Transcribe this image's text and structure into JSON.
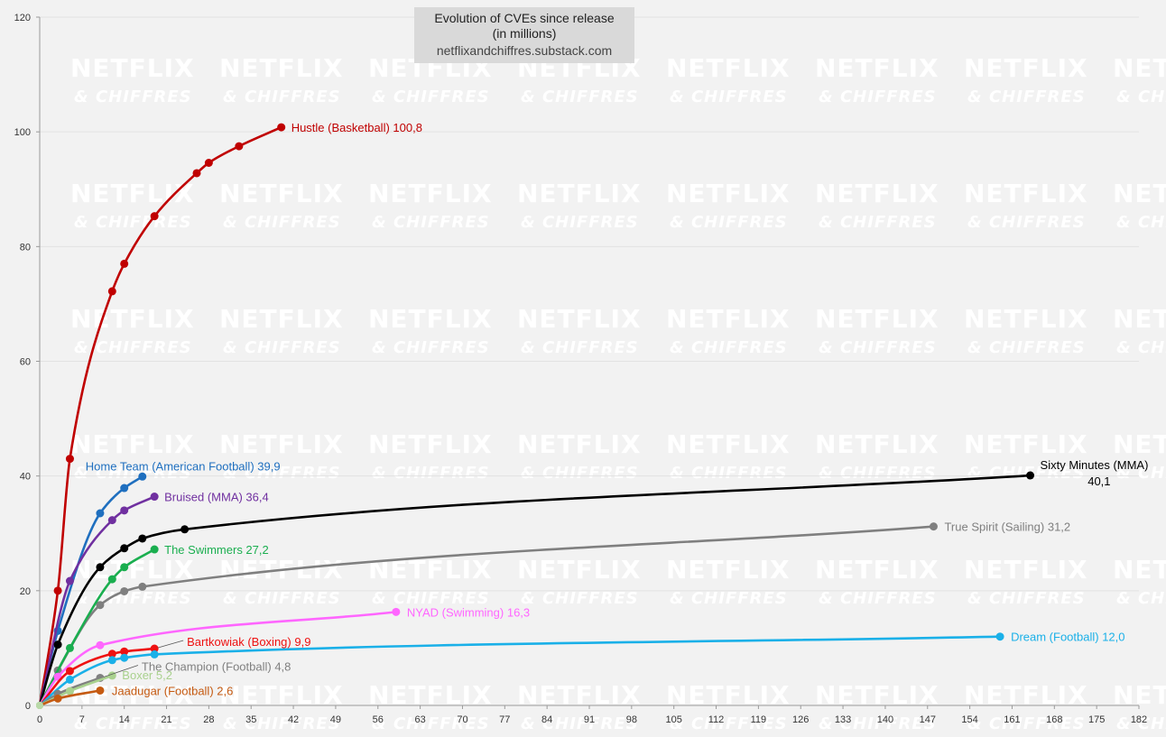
{
  "title_line1": "Evolution of CVEs since release",
  "title_line2": "(in millions)",
  "source": "netflixandchiffres.substack.com",
  "watermark": {
    "line1": "NETFLIX",
    "line2": "& CHIFFRES"
  },
  "chart_data": {
    "type": "line",
    "title": "Evolution of CVEs since release (in millions)",
    "xlim": [
      0,
      182
    ],
    "ylim": [
      0,
      120
    ],
    "xticks": [
      0,
      7,
      14,
      21,
      28,
      35,
      42,
      49,
      56,
      63,
      70,
      77,
      84,
      91,
      98,
      105,
      112,
      119,
      126,
      133,
      140,
      147,
      154,
      161,
      168,
      175,
      182
    ],
    "yticks": [
      0,
      20,
      40,
      60,
      80,
      100,
      120
    ],
    "grid": true,
    "series": [
      {
        "name": "Hustle (Basketball)",
        "end_label": "100,8",
        "color": "#c00000",
        "x": [
          0,
          3,
          5,
          12,
          14,
          19,
          26,
          28,
          33,
          40
        ],
        "y": [
          0,
          20,
          43,
          72.2,
          77,
          85.3,
          92.8,
          94.6,
          97.5,
          100.8
        ]
      },
      {
        "name": "Home Team (American Football)",
        "end_label": "39,9",
        "color": "#1f6fbf",
        "x": [
          0,
          3,
          10,
          14,
          17
        ],
        "y": [
          0,
          13,
          33.5,
          37.9,
          39.9
        ]
      },
      {
        "name": "Bruised (MMA)",
        "end_label": "36,4",
        "color": "#7030a0",
        "x": [
          0,
          5,
          12,
          14,
          19
        ],
        "y": [
          0,
          21.7,
          32.3,
          34,
          36.4
        ]
      },
      {
        "name": "Sixty Minutes (MMA)",
        "end_label": "40,1",
        "color": "#000000",
        "x": [
          0,
          3,
          10,
          14,
          17,
          24,
          164
        ],
        "y": [
          0,
          10.6,
          24.1,
          27.4,
          29.1,
          30.7,
          40.1
        ]
      },
      {
        "name": "True Spirit (Sailing)",
        "end_label": "31,2",
        "color": "#7f7f7f",
        "x": [
          0,
          3,
          10,
          14,
          17,
          148
        ],
        "y": [
          0,
          6.1,
          17.5,
          19.9,
          20.7,
          31.2
        ]
      },
      {
        "name": "The Swimmers",
        "end_label": "27,2",
        "color": "#1aae4f",
        "x": [
          0,
          5,
          12,
          14,
          19
        ],
        "y": [
          0,
          10,
          22,
          24.1,
          27.2
        ]
      },
      {
        "name": "NYAD (Swimming)",
        "end_label": "16,3",
        "color": "#ff66ff",
        "x": [
          0,
          3,
          10,
          59
        ],
        "y": [
          0,
          5,
          10.5,
          16.3
        ]
      },
      {
        "name": "Bartkowiak (Boxing)",
        "end_label": "9,9",
        "color": "#ee1111",
        "x": [
          0,
          5,
          12,
          14,
          19
        ],
        "y": [
          0,
          6,
          9,
          9.4,
          9.9
        ]
      },
      {
        "name": "Dream (Football)",
        "end_label": "12,0",
        "color": "#1ab0e8",
        "x": [
          0,
          5,
          12,
          14,
          19,
          159
        ],
        "y": [
          0,
          4.5,
          7.9,
          8.3,
          8.9,
          12
        ]
      },
      {
        "name": "The Champion (Football)",
        "end_label": "4,8",
        "color": "#808080",
        "x": [
          0,
          3,
          10
        ],
        "y": [
          0,
          2,
          4.8
        ]
      },
      {
        "name": "Boxer",
        "end_label": "5,2",
        "color": "#a9d18e",
        "x": [
          0,
          5,
          12
        ],
        "y": [
          0,
          2.5,
          5.2
        ]
      },
      {
        "name": "Jaadugar (Football)",
        "end_label": "2,6",
        "color": "#c55a11",
        "x": [
          0,
          3,
          10
        ],
        "y": [
          0,
          1.2,
          2.6
        ]
      }
    ]
  }
}
